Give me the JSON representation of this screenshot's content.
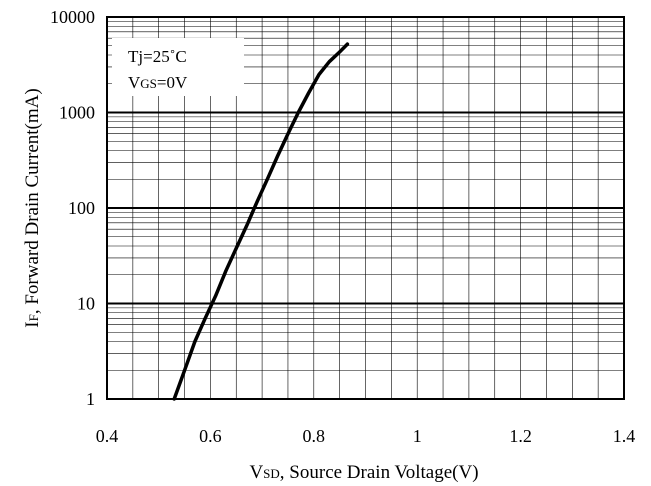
{
  "chart_data": {
    "type": "line",
    "x_scale": "linear",
    "y_scale": "log",
    "xlim": [
      0.4,
      1.4
    ],
    "ylim": [
      1,
      10000
    ],
    "x_ticks": [
      "0.4",
      "0.6",
      "0.8",
      "1",
      "1.2",
      "1.4"
    ],
    "y_ticks": [
      "1",
      "10",
      "100",
      "1000",
      "10000"
    ],
    "grid": true,
    "xlabel": {
      "main": "V",
      "sub": "SD",
      "rest": ", Source Drain Voltage(V)"
    },
    "ylabel": {
      "main": "I",
      "sub": "F",
      "rest": ", Forward Drain Current(mA)"
    },
    "annotation": {
      "line1": "Tj=25˚C",
      "line2_main": "V",
      "line2_sub": "GS",
      "line2_rest": "=0V"
    },
    "series": [
      {
        "color": "#000000",
        "x": [
          0.53,
          0.55,
          0.57,
          0.59,
          0.61,
          0.63,
          0.65,
          0.67,
          0.69,
          0.71,
          0.73,
          0.75,
          0.77,
          0.79,
          0.81,
          0.83,
          0.85,
          0.865
        ],
        "y": [
          1.0,
          2.0,
          4.0,
          7.0,
          12.0,
          22.0,
          38.0,
          65.0,
          115.0,
          200.0,
          350.0,
          600.0,
          1000.0,
          1600.0,
          2500.0,
          3400.0,
          4300.0,
          5200.0
        ]
      }
    ]
  }
}
